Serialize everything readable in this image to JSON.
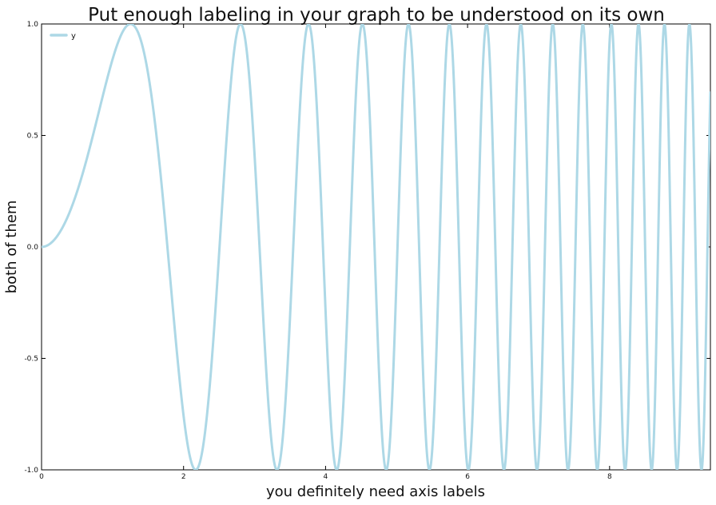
{
  "chart_data": {
    "type": "line",
    "title": "Put enough labeling in your graph to be understood on its own",
    "xlabel": "you definitely need axis labels",
    "ylabel": "both of them",
    "xlim": [
      0,
      9.42
    ],
    "ylim": [
      -1.0,
      1.0
    ],
    "xticks": [
      0,
      2,
      4,
      6,
      8
    ],
    "xtick_labels": [
      "0",
      "2",
      "4",
      "6",
      "8"
    ],
    "yticks": [
      1.0,
      0.5,
      0.0,
      -0.5,
      -1.0
    ],
    "ytick_labels": [
      "1.0",
      "0.5",
      "0.0",
      "-0.5",
      "-1.0"
    ],
    "grid": false,
    "legend_position": "top-left",
    "series": [
      {
        "name": "y",
        "color": "#add8e6",
        "function": "sin(x^2)",
        "x_range": [
          0,
          9.42
        ]
      }
    ]
  }
}
